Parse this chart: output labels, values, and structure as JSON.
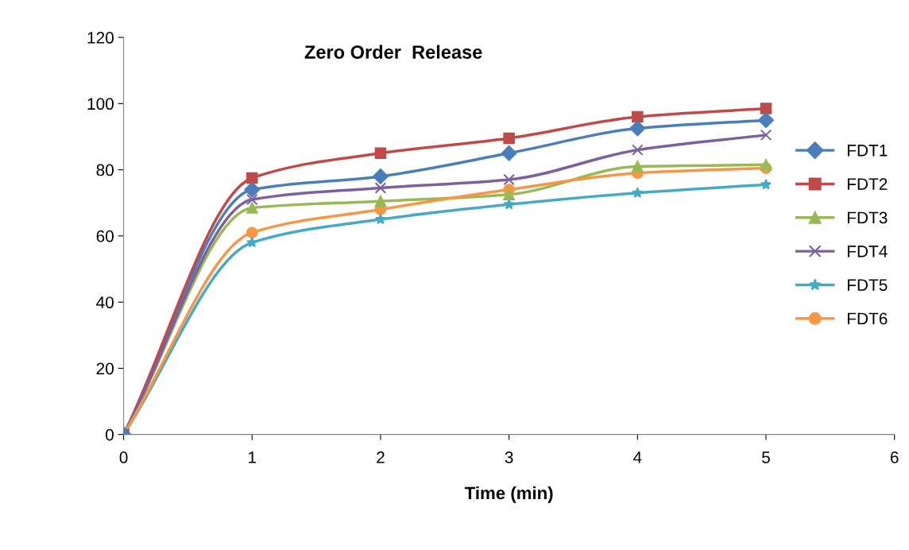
{
  "chart_data": {
    "type": "line",
    "title": "Zero Order  Release",
    "xlabel": "Time (min)",
    "x": [
      0,
      1,
      2,
      3,
      4,
      5
    ],
    "series": [
      {
        "name": "FDT1",
        "color": "#4a7ebb",
        "marker": "diamond",
        "values": [
          0,
          74,
          78,
          85,
          92.5,
          95
        ]
      },
      {
        "name": "FDT2",
        "color": "#be4b48",
        "marker": "square",
        "values": [
          0,
          77.5,
          85,
          89.5,
          96,
          98.5
        ]
      },
      {
        "name": "FDT3",
        "color": "#98b954",
        "marker": "triangle",
        "values": [
          0,
          68.5,
          70.5,
          72.5,
          81,
          81.5
        ]
      },
      {
        "name": "FDT4",
        "color": "#7d60a0",
        "marker": "cross",
        "values": [
          0,
          71,
          74.5,
          77,
          86,
          90.5
        ]
      },
      {
        "name": "FDT5",
        "color": "#46aac5",
        "marker": "star",
        "values": [
          0,
          58,
          65,
          69.5,
          73,
          75.5
        ]
      },
      {
        "name": "FDT6",
        "color": "#f79646",
        "marker": "circle",
        "values": [
          0,
          61,
          68,
          74,
          79,
          80.5
        ]
      }
    ],
    "xlim": [
      0,
      6
    ],
    "xticks": [
      0,
      1,
      2,
      3,
      4,
      5,
      6
    ],
    "ylim": [
      0,
      120
    ],
    "yticks": [
      0,
      20,
      40,
      60,
      80,
      100,
      120
    ],
    "grid": false,
    "legend": "right",
    "line_style": "solid"
  }
}
